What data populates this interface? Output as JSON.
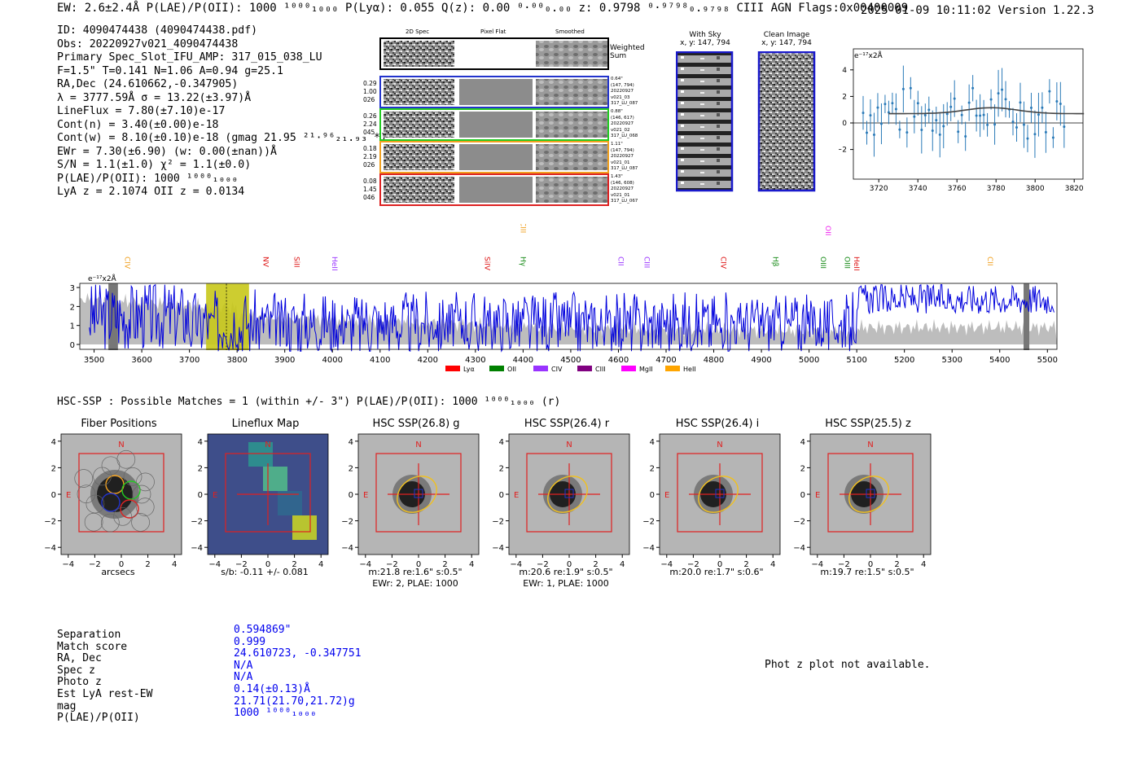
{
  "header": {
    "left": "EW: 2.6±2.4Å  P(LAE)/P(OII): 1000 ¹⁰⁰⁰₁₀₀₀  P(Lyα): 0.055  Q(z): 0.00 ⁰·⁰⁰₀.₀₀  z: 0.9798 ⁰·⁹⁷⁹⁸₀.₉₇₉₈ CIII  AGN  Flags:0x00400009",
    "right": "2025-01-09 10:11:02  Version 1.22.3"
  },
  "info": {
    "lines": [
      "ID: 4090474438 (4090474438.pdf)",
      "Obs: 20220927v021_4090474438",
      "Primary Spec_Slot_IFU_AMP: 317_015_038_LU",
      "F=1.5\"  T=0.141  N=1.06  A=0.94  g=25.1",
      "RA,Dec (24.610662,-0.347905)",
      "λ = 3777.59Å  σ = 13.22(±3.97)Å",
      "LineFlux = 7.80(±7.10)e-17",
      "Cont(n) = 3.40(±0.00)e-18",
      "Cont(w) = 8.10(±0.10)e-18 (gmag 21.95 ²¹·⁹⁶₂₁.₉₃ *)",
      "EWr = 7.30(±6.90) (w: 0.00(±nan))Å",
      "S/N = 1.1(±1.0)  χ² = 1.1(±0.0)",
      "P(LAE)/P(OII): 1000 ¹⁰⁰⁰₁₀₀₀",
      "LyA z = 2.1074  OII z = 0.0134"
    ]
  },
  "cutouts": {
    "col_titles": [
      "2D Spec",
      "Pixel Flat",
      "Smoothed"
    ],
    "weighted_label": "Weighted Sum",
    "rows": [
      {
        "left": [
          "0.29",
          "1.00",
          "026"
        ],
        "right": [
          "0.64\"",
          "(147, 794)",
          "20220927",
          "v021_03",
          "317_LU_087"
        ],
        "color": "#2233cc"
      },
      {
        "left": [
          "0.26",
          "2.24",
          "045"
        ],
        "right": [
          "0.88\"",
          "(146, 617)",
          "20220927",
          "v021_02",
          "317_LU_068"
        ],
        "color": "#22cc22"
      },
      {
        "left": [
          "0.18",
          "2.19",
          "026"
        ],
        "right": [
          "1.11\"",
          "(147, 794)",
          "20220927",
          "v021_01",
          "317_LU_087"
        ],
        "color": "#f0a020"
      },
      {
        "left": [
          "0.08",
          "1.45",
          "046"
        ],
        "right": [
          "1.43\"",
          "(146, 608)",
          "20220927",
          "v021_01",
          "317_LU_067"
        ],
        "color": "#dd2222"
      }
    ],
    "sky_title": "With Sky",
    "sky_sub": "x, y: 147, 794",
    "clean_title": "Clean Image",
    "clean_sub": "x, y: 147, 794"
  },
  "mini_chart": {
    "ylabel": "e⁻¹⁷x2Å",
    "yticks": [
      "4",
      "2",
      "0",
      "−2"
    ],
    "xticks": [
      "3720",
      "3740",
      "3760",
      "3780",
      "3800",
      "3820"
    ]
  },
  "chart_data": {
    "type": "line",
    "title": "",
    "ylabel": "e⁻¹⁷x2Å",
    "xlabel": "",
    "xlim": [
      3470,
      5520
    ],
    "ylim": [
      -0.4,
      3.2
    ],
    "xticks": [
      3500,
      3600,
      3700,
      3800,
      3900,
      4000,
      4100,
      4200,
      4300,
      4400,
      4500,
      4600,
      4700,
      4800,
      4900,
      5000,
      5100,
      5200,
      5300,
      5400,
      5500
    ],
    "yticks": [
      0,
      1,
      2,
      3
    ],
    "line_markers": [
      {
        "label": "CIV",
        "x": 3565,
        "color": "#f0a020",
        "level": 2
      },
      {
        "label": "CIII",
        "x": 4395,
        "color": "#f0a020",
        "level": 0
      },
      {
        "label": "NV",
        "x": 3855,
        "color": "#dd1111",
        "level": 2
      },
      {
        "label": "SiII",
        "x": 3920,
        "color": "#dd1111",
        "level": 2
      },
      {
        "label": "HeII",
        "x": 4000,
        "color": "#9933ff",
        "level": 2
      },
      {
        "label": "SiIV",
        "x": 4320,
        "color": "#dd1111",
        "level": 2
      },
      {
        "label": "Hγ",
        "x": 4395,
        "color": "#118811",
        "level": 2
      },
      {
        "label": "CII",
        "x": 4600,
        "color": "#9933ff",
        "level": 2
      },
      {
        "label": "CIII",
        "x": 4655,
        "color": "#9933ff",
        "level": 2
      },
      {
        "label": "CIV",
        "x": 4815,
        "color": "#dd1111",
        "level": 2
      },
      {
        "label": "Hβ",
        "x": 4925,
        "color": "#118811",
        "level": 2
      },
      {
        "label": "OII",
        "x": 5035,
        "color": "#ee22ee",
        "level": 1
      },
      {
        "label": "OIII",
        "x": 5025,
        "color": "#118811",
        "level": 2
      },
      {
        "label": "OIII",
        "x": 5075,
        "color": "#118811",
        "level": 2
      },
      {
        "label": "HeII",
        "x": 5095,
        "color": "#dd1111",
        "level": 2
      },
      {
        "label": "CII",
        "x": 5375,
        "color": "#f0a020",
        "level": 2
      }
    ],
    "highlight_window": [
      3735,
      3825
    ],
    "legend": [
      {
        "label": "Lyα",
        "color": "#ff0000"
      },
      {
        "label": "OII",
        "color": "#008000"
      },
      {
        "label": "CIV",
        "color": "#9933ff"
      },
      {
        "label": "CIII",
        "color": "#800080"
      },
      {
        "label": "MgII",
        "color": "#ff00ff"
      },
      {
        "label": "HeII",
        "color": "#ffa500"
      }
    ]
  },
  "hsc": {
    "header": "HSC-SSP : Possible Matches = 1 (within +/- 3\")  P(LAE)/P(OII): 1000 ¹⁰⁰⁰₁₀₀₀ (r)",
    "panels": [
      {
        "title": "Fiber Positions",
        "caption1": "arcsecs",
        "caption2": ""
      },
      {
        "title": "Lineflux Map",
        "caption1": "s/b: -0.11 +/- 0.081",
        "caption2": ""
      },
      {
        "title": "HSC SSP(26.8) g",
        "caption1": "m:21.8  re:1.6\"  s:0.5\"",
        "caption2": "EWr: 2, PLAE: 1000"
      },
      {
        "title": "HSC SSP(26.4) r",
        "caption1": "m:20.6  re:1.9\"  s:0.5\"",
        "caption2": "EWr: 1, PLAE: 1000"
      },
      {
        "title": "HSC SSP(26.4) i",
        "caption1": "m:20.0  re:1.7\"  s:0.6\"",
        "caption2": ""
      },
      {
        "title": "HSC SSP(25.5) z",
        "caption1": "m:19.7  re:1.5\"  s:0.5\"",
        "caption2": ""
      }
    ],
    "axis_ticks": [
      "4",
      "2",
      "0",
      "−2",
      "−4"
    ],
    "xaxis_ticks": [
      "−4",
      "−2",
      "0",
      "2",
      "4"
    ],
    "compass_n": "N",
    "compass_e": "E"
  },
  "match_table": {
    "keys": [
      "Separation",
      "Match score",
      "RA, Dec",
      "Spec z",
      "Photo z",
      "Est LyA rest-EW",
      "mag",
      "P(LAE)/P(OII)"
    ],
    "values": [
      "0.594869\"",
      "0.999",
      "24.610723, -0.347751",
      "N/A",
      "N/A",
      "0.14(±0.13)Å",
      "21.71(21.70,21.72)g",
      "1000 ¹⁰⁰⁰₁₀₀₀"
    ]
  },
  "photz_note": "Phot z plot not available."
}
